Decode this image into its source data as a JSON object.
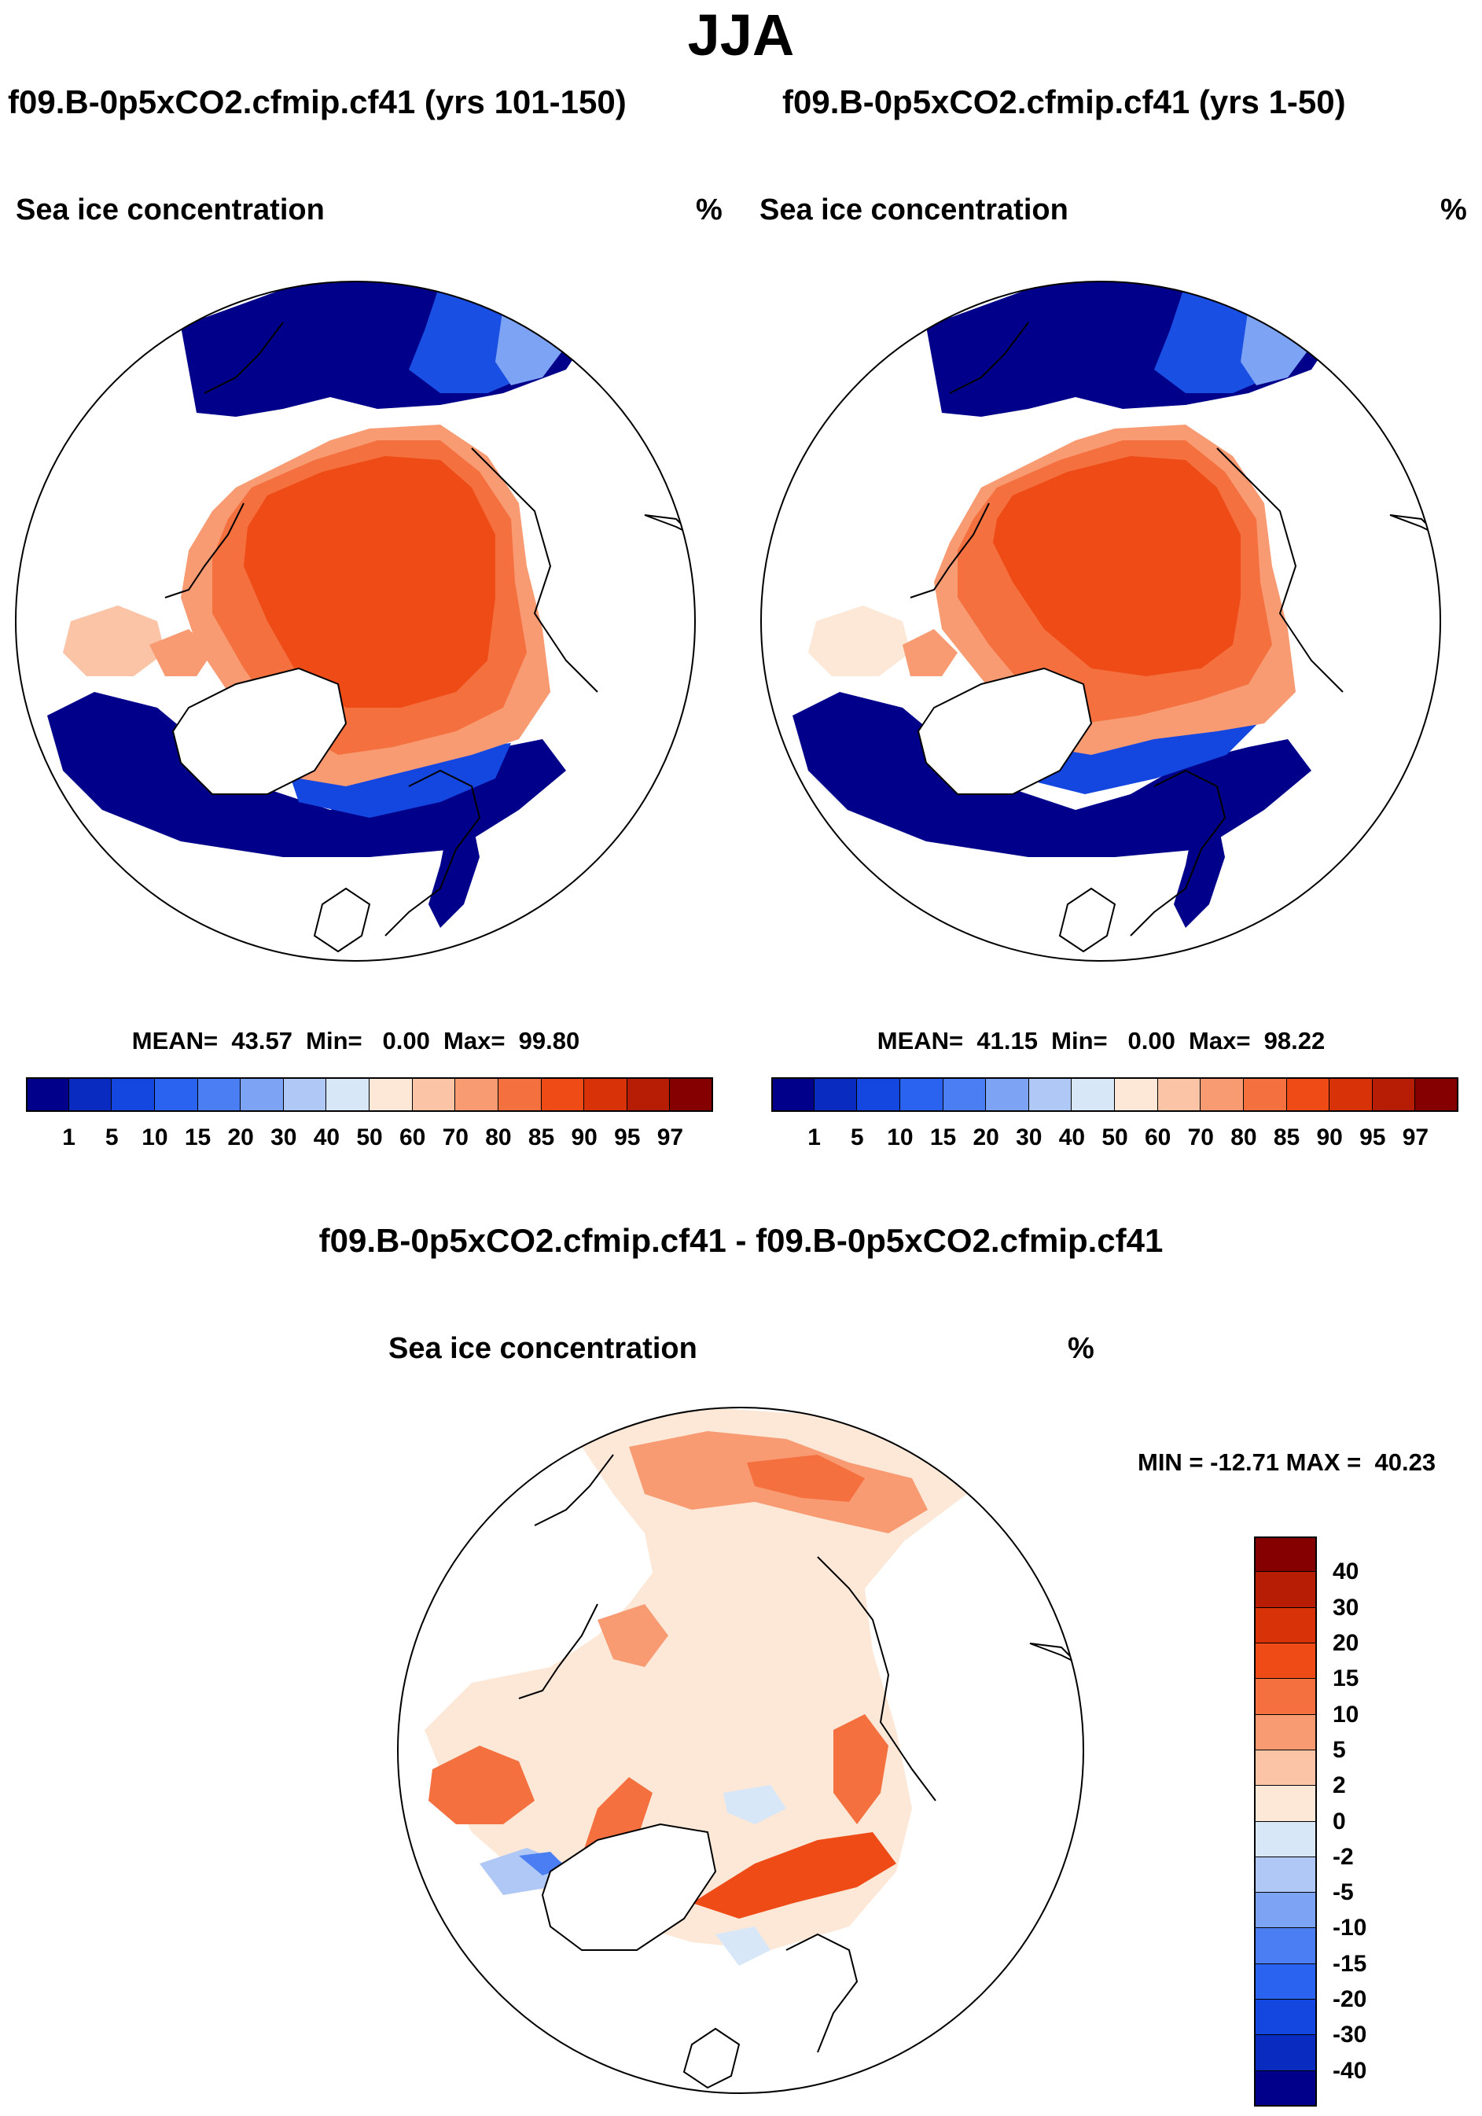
{
  "season_title": "JJA",
  "panels": [
    {
      "case_title": "f09.B-0p5xCO2.cfmip.cf41 (yrs 101-150)",
      "variable": "Sea ice concentration",
      "units": "%",
      "stats_text": "MEAN=  43.57  Min=   0.00  Max=  99.80",
      "stats": {
        "mean": 43.57,
        "min": 0.0,
        "max": 99.8
      }
    },
    {
      "case_title": "f09.B-0p5xCO2.cfmip.cf41 (yrs 1-50)",
      "variable": "Sea ice concentration",
      "units": "%",
      "stats_text": "MEAN=  41.15  Min=   0.00  Max=  98.22",
      "stats": {
        "mean": 41.15,
        "min": 0.0,
        "max": 98.22
      }
    }
  ],
  "diff_panel": {
    "title": "f09.B-0p5xCO2.cfmip.cf41 - f09.B-0p5xCO2.cfmip.cf41",
    "variable": "Sea ice concentration",
    "units": "%",
    "minmax_text": "MIN = -12.71 MAX =  40.23",
    "stats": {
      "min": -12.71,
      "max": 40.23
    }
  },
  "colorbar_abs": {
    "levels": [
      "1",
      "5",
      "10",
      "15",
      "20",
      "30",
      "40",
      "50",
      "60",
      "70",
      "80",
      "85",
      "90",
      "95",
      "97"
    ],
    "colors": [
      "#00008b",
      "#0a2bbf",
      "#1446e0",
      "#2a63f0",
      "#4a7ef2",
      "#7da4f4",
      "#b0c8f5",
      "#d8e7f8",
      "#fde8d8",
      "#fbc4a6",
      "#f89a72",
      "#f4703f",
      "#ee4b16",
      "#d83208",
      "#b71d05",
      "#850000"
    ]
  },
  "colorbar_diff": {
    "levels": [
      "40",
      "30",
      "20",
      "15",
      "10",
      "5",
      "2",
      "0",
      "-2",
      "-5",
      "-10",
      "-15",
      "-20",
      "-30",
      "-40"
    ],
    "colors": [
      "#850000",
      "#b71d05",
      "#d83208",
      "#ee4b16",
      "#f4703f",
      "#f89a72",
      "#fbc4a6",
      "#fde8d8",
      "#d8e7f8",
      "#b0c8f5",
      "#7da4f4",
      "#4a7ef2",
      "#2a63f0",
      "#1446e0",
      "#0a2bbf",
      "#00008b"
    ]
  }
}
